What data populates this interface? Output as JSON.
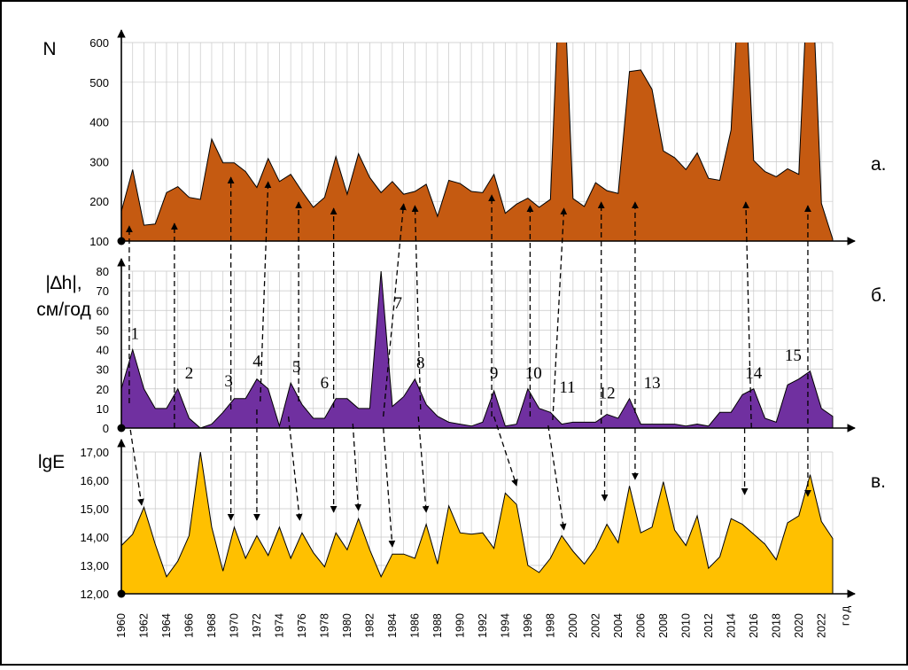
{
  "chart_data": [
    {
      "type": "area",
      "panel_label": "а.",
      "ylabel": "N",
      "ylim": [
        100,
        600
      ],
      "yticks": [
        "100",
        "200",
        "300",
        "400",
        "500",
        "600"
      ],
      "grid": true,
      "color": "#c55a11",
      "x": [
        1960,
        1961,
        1962,
        1963,
        1964,
        1965,
        1966,
        1967,
        1968,
        1969,
        1970,
        1971,
        1972,
        1973,
        1974,
        1975,
        1976,
        1977,
        1978,
        1979,
        1980,
        1981,
        1982,
        1983,
        1984,
        1985,
        1986,
        1987,
        1988,
        1989,
        1990,
        1991,
        1992,
        1993,
        1994,
        1995,
        1996,
        1997,
        1998,
        1999,
        2000,
        2001,
        2002,
        2003,
        2004,
        2005,
        2006,
        2007,
        2008,
        2009,
        2010,
        2011,
        2012,
        2013,
        2014,
        2015,
        2016,
        2017,
        2018,
        2019,
        2020,
        2021,
        2022,
        2023
      ],
      "values": [
        175,
        280,
        140,
        143,
        222,
        237,
        210,
        205,
        357,
        297,
        297,
        275,
        235,
        308,
        250,
        268,
        225,
        185,
        210,
        313,
        218,
        320,
        260,
        222,
        250,
        218,
        225,
        243,
        162,
        253,
        245,
        225,
        222,
        268,
        170,
        193,
        208,
        185,
        205,
        1000,
        207,
        187,
        247,
        227,
        220,
        527,
        531,
        482,
        327,
        310,
        280,
        322,
        258,
        253,
        380,
        1000,
        303,
        275,
        262,
        282,
        268,
        1000,
        195,
        105
      ]
    },
    {
      "type": "area",
      "panel_label": "б.",
      "ylabel": [
        "|∆h|,",
        "см/год"
      ],
      "ylim": [
        0,
        80
      ],
      "yticks": [
        "0",
        "10",
        "20",
        "30",
        "40",
        "50",
        "60",
        "70",
        "80"
      ],
      "grid": true,
      "color": "#7030a0",
      "x": [
        1960,
        1961,
        1962,
        1963,
        1964,
        1965,
        1966,
        1967,
        1968,
        1969,
        1970,
        1971,
        1972,
        1973,
        1974,
        1975,
        1976,
        1977,
        1978,
        1979,
        1980,
        1981,
        1982,
        1983,
        1984,
        1985,
        1986,
        1987,
        1988,
        1989,
        1990,
        1991,
        1992,
        1993,
        1994,
        1995,
        1996,
        1997,
        1998,
        1999,
        2000,
        2001,
        2002,
        2003,
        2004,
        2005,
        2006,
        2007,
        2008,
        2009,
        2010,
        2011,
        2012,
        2013,
        2014,
        2015,
        2016,
        2017,
        2018,
        2019,
        2020,
        2021,
        2022,
        2023
      ],
      "values": [
        20,
        40,
        20,
        10,
        10,
        20,
        5,
        0,
        2,
        8,
        15,
        15,
        25,
        20,
        1,
        23,
        12,
        5,
        5,
        15,
        15,
        10,
        10,
        80,
        11,
        16,
        25,
        12,
        6,
        3,
        2,
        1,
        3,
        19,
        1,
        2,
        20,
        10,
        8,
        2,
        3,
        3,
        3,
        7,
        5,
        15,
        2,
        2,
        2,
        2,
        1,
        2,
        1,
        8,
        8,
        17,
        20,
        5,
        3,
        22,
        25,
        29,
        10,
        6
      ],
      "annotations": [
        "1",
        "2",
        "3",
        "4",
        "5",
        "6",
        "7",
        "8",
        "9",
        "10",
        "11",
        "12",
        "13",
        "14",
        "15"
      ]
    },
    {
      "type": "area",
      "panel_label": "в.",
      "ylabel": "lgE",
      "ylim": [
        12.0,
        17.0
      ],
      "yticks": [
        "12,00",
        "13,00",
        "14,00",
        "15,00",
        "16,00",
        "17,00"
      ],
      "grid": true,
      "color": "#ffc000",
      "x": [
        1960,
        1961,
        1962,
        1963,
        1964,
        1965,
        1966,
        1967,
        1968,
        1969,
        1970,
        1971,
        1972,
        1973,
        1974,
        1975,
        1976,
        1977,
        1978,
        1979,
        1980,
        1981,
        1982,
        1983,
        1984,
        1985,
        1986,
        1987,
        1988,
        1989,
        1990,
        1991,
        1992,
        1993,
        1994,
        1995,
        1996,
        1997,
        1998,
        1999,
        2000,
        2001,
        2002,
        2003,
        2004,
        2005,
        2006,
        2007,
        2008,
        2009,
        2010,
        2011,
        2012,
        2013,
        2014,
        2015,
        2016,
        2017,
        2018,
        2019,
        2020,
        2021,
        2022,
        2023
      ],
      "values": [
        13.7,
        14.1,
        15.05,
        13.75,
        12.6,
        13.15,
        14.05,
        17.0,
        14.35,
        12.8,
        14.35,
        13.25,
        14.05,
        13.35,
        14.35,
        13.25,
        14.15,
        13.45,
        12.95,
        14.15,
        13.55,
        14.65,
        13.55,
        12.6,
        13.4,
        13.4,
        13.25,
        14.45,
        13.05,
        15.1,
        14.15,
        14.1,
        14.15,
        13.6,
        15.55,
        15.15,
        13.0,
        12.75,
        13.25,
        14.05,
        13.5,
        13.05,
        13.6,
        14.45,
        13.8,
        15.8,
        14.15,
        14.35,
        15.95,
        14.25,
        13.7,
        14.75,
        12.9,
        13.3,
        14.65,
        14.45,
        14.1,
        13.75,
        13.2,
        14.5,
        14.75,
        16.2,
        14.55,
        13.95
      ]
    }
  ],
  "x_axis": {
    "labels": [
      "1960",
      "1962",
      "1964",
      "1966",
      "1968",
      "1970",
      "1972",
      "1974",
      "1976",
      "1978",
      "1980",
      "1982",
      "1984",
      "1986",
      "1988",
      "1990",
      "1992",
      "1994",
      "1996",
      "1998",
      "2000",
      "2002",
      "2004",
      "2006",
      "2008",
      "2010",
      "2012",
      "2014",
      "2016",
      "2018",
      "2020",
      "2022"
    ],
    "unit": "год"
  },
  "arrows": [
    {
      "from": [
        1961,
        0
      ],
      "to": [
        1961,
        0
      ]
    }
  ]
}
